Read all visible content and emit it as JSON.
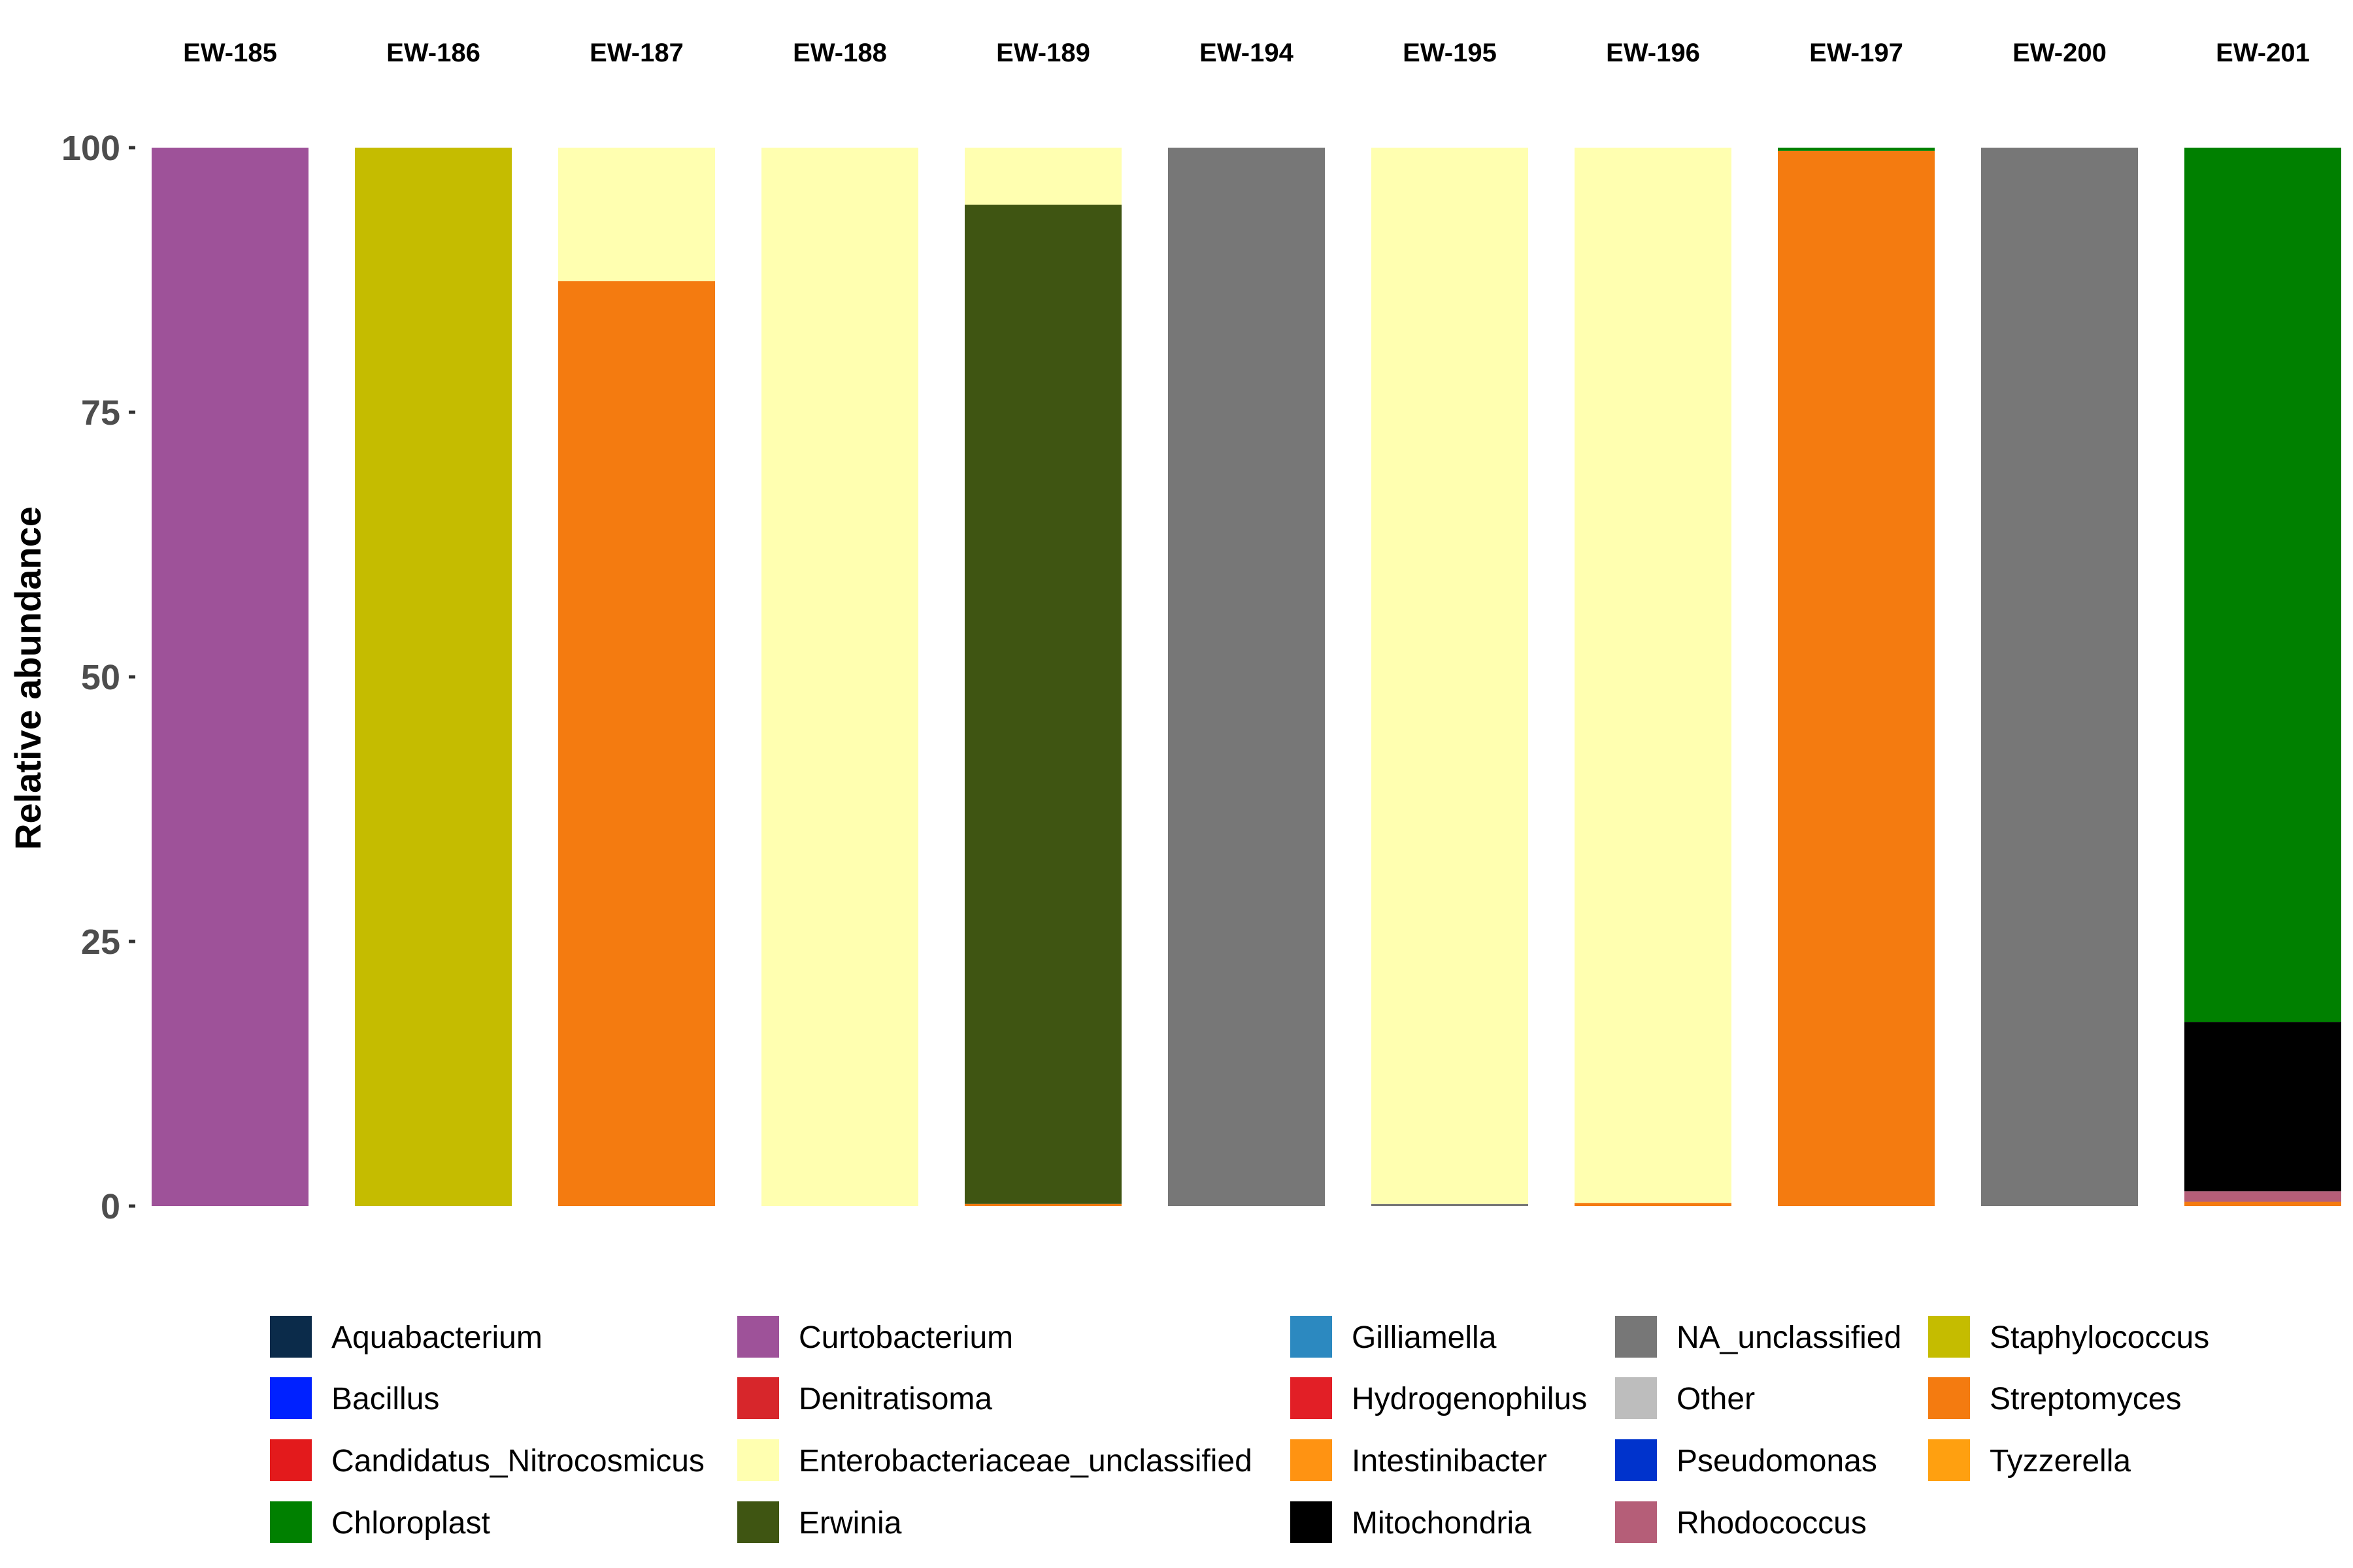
{
  "chart_data": {
    "type": "bar",
    "stacked": true,
    "categories": [
      "EW-185",
      "EW-186",
      "EW-187",
      "EW-188",
      "EW-189",
      "EW-194",
      "EW-195",
      "EW-196",
      "EW-197",
      "EW-200",
      "EW-201"
    ],
    "ylabel": "Relative abundance",
    "ylim": [
      0,
      100
    ],
    "yticks": [
      0,
      25,
      50,
      75,
      100
    ],
    "legend_position": "bottom",
    "grid": false,
    "legend": [
      {
        "name": "Aquabacterium",
        "color": "#0b2b4a"
      },
      {
        "name": "Bacillus",
        "color": "#0021ff"
      },
      {
        "name": "Candidatus_Nitrocosmicus",
        "color": "#e31a1c"
      },
      {
        "name": "Chloroplast",
        "color": "#008000"
      },
      {
        "name": "Curtobacterium",
        "color": "#9e5299"
      },
      {
        "name": "Denitratisoma",
        "color": "#d7262b"
      },
      {
        "name": "Enterobacteriaceae_unclassified",
        "color": "#ffffb0"
      },
      {
        "name": "Erwinia",
        "color": "#3f5512"
      },
      {
        "name": "Gilliamella",
        "color": "#2c89c0"
      },
      {
        "name": "Hydrogenophilus",
        "color": "#e21f26"
      },
      {
        "name": "Intestinibacter",
        "color": "#ff9312"
      },
      {
        "name": "Mitochondria",
        "color": "#000000"
      },
      {
        "name": "NA_unclassified",
        "color": "#777777"
      },
      {
        "name": "Other",
        "color": "#bdbdbd"
      },
      {
        "name": "Pseudomonas",
        "color": "#0033cc"
      },
      {
        "name": "Rhodococcus",
        "color": "#b55e78"
      },
      {
        "name": "Staphylococcus",
        "color": "#c5bc00"
      },
      {
        "name": "Streptomyces",
        "color": "#f47b10"
      },
      {
        "name": "Tyzzerella",
        "color": "#ffa010"
      }
    ],
    "stacks": [
      [
        {
          "name": "Curtobacterium",
          "value": 100
        }
      ],
      [
        {
          "name": "Staphylococcus",
          "value": 100
        }
      ],
      [
        {
          "name": "Streptomyces",
          "value": 87.4
        },
        {
          "name": "Enterobacteriaceae_unclassified",
          "value": 12.6
        }
      ],
      [
        {
          "name": "Enterobacteriaceae_unclassified",
          "value": 100
        }
      ],
      [
        {
          "name": "Streptomyces",
          "value": 0.2
        },
        {
          "name": "Erwinia",
          "value": 94.4
        },
        {
          "name": "Enterobacteriaceae_unclassified",
          "value": 5.4
        }
      ],
      [
        {
          "name": "NA_unclassified",
          "value": 100
        }
      ],
      [
        {
          "name": "NA_unclassified",
          "value": 0.2
        },
        {
          "name": "Enterobacteriaceae_unclassified",
          "value": 99.8
        }
      ],
      [
        {
          "name": "Streptomyces",
          "value": 0.3
        },
        {
          "name": "Enterobacteriaceae_unclassified",
          "value": 99.7
        }
      ],
      [
        {
          "name": "Streptomyces",
          "value": 99.7
        },
        {
          "name": "Chloroplast",
          "value": 0.3
        }
      ],
      [
        {
          "name": "NA_unclassified",
          "value": 100
        }
      ],
      [
        {
          "name": "Streptomyces",
          "value": 0.4
        },
        {
          "name": "Rhodococcus",
          "value": 1.0
        },
        {
          "name": "Mitochondria",
          "value": 16.0
        },
        {
          "name": "Chloroplast",
          "value": 82.6
        }
      ]
    ]
  }
}
